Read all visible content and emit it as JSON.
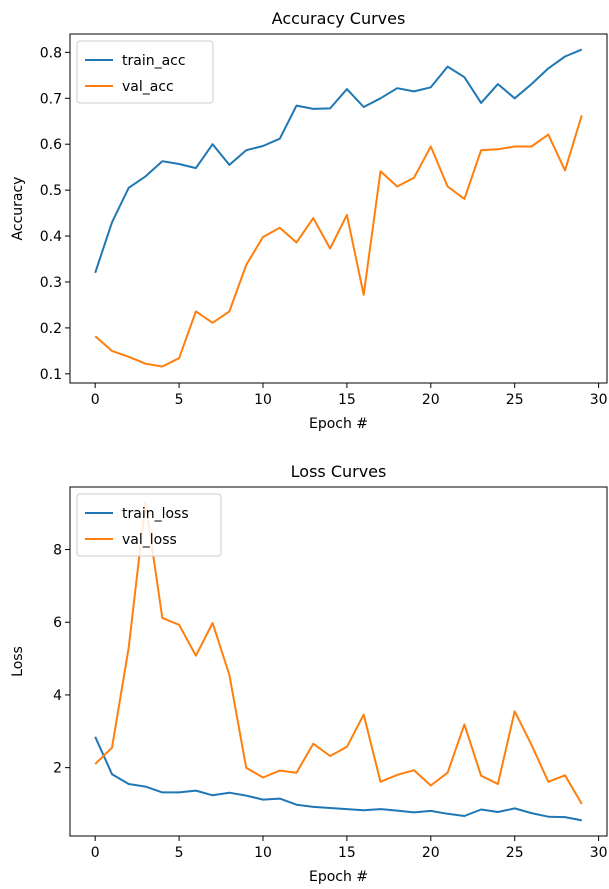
{
  "chart_data": [
    {
      "type": "line",
      "title": "Accuracy Curves",
      "xlabel": "Epoch #",
      "ylabel": "Accuracy",
      "xlim": [
        -1.5,
        30.5
      ],
      "ylim": [
        0.08,
        0.84
      ],
      "xticks": [
        0,
        5,
        10,
        15,
        20,
        25,
        30
      ],
      "yticks": [
        0.1,
        0.2,
        0.3,
        0.4,
        0.5,
        0.6,
        0.7,
        0.8
      ],
      "grid": false,
      "legend_position": "top-left",
      "x": [
        0,
        1,
        2,
        3,
        4,
        5,
        6,
        7,
        8,
        9,
        10,
        11,
        12,
        13,
        14,
        15,
        16,
        17,
        18,
        19,
        20,
        21,
        22,
        23,
        24,
        25,
        26,
        27,
        28,
        29
      ],
      "series": [
        {
          "name": "train_acc",
          "color": "#1f77b4",
          "values": [
            0.32,
            0.43,
            0.505,
            0.53,
            0.563,
            0.557,
            0.548,
            0.6,
            0.555,
            0.587,
            0.596,
            0.612,
            0.684,
            0.677,
            0.678,
            0.72,
            0.681,
            0.7,
            0.722,
            0.715,
            0.724,
            0.769,
            0.746,
            0.69,
            0.731,
            0.7,
            0.731,
            0.765,
            0.791,
            0.806
          ]
        },
        {
          "name": "val_acc",
          "color": "#ff7f0e",
          "values": [
            0.182,
            0.15,
            0.137,
            0.122,
            0.116,
            0.134,
            0.236,
            0.211,
            0.236,
            0.337,
            0.398,
            0.418,
            0.386,
            0.439,
            0.373,
            0.446,
            0.272,
            0.541,
            0.508,
            0.527,
            0.595,
            0.508,
            0.481,
            0.587,
            0.589,
            0.595,
            0.595,
            0.621,
            0.543,
            0.663
          ]
        }
      ]
    },
    {
      "type": "line",
      "title": "Loss Curves",
      "xlabel": "Epoch #",
      "ylabel": "Loss",
      "xlim": [
        -1.5,
        30.5
      ],
      "ylim": [
        0.12,
        9.72
      ],
      "xticks": [
        0,
        5,
        10,
        15,
        20,
        25,
        30
      ],
      "yticks": [
        2,
        4,
        6,
        8
      ],
      "grid": false,
      "legend_position": "top-left",
      "x": [
        0,
        1,
        2,
        3,
        4,
        5,
        6,
        7,
        8,
        9,
        10,
        11,
        12,
        13,
        14,
        15,
        16,
        17,
        18,
        19,
        20,
        21,
        22,
        23,
        24,
        25,
        26,
        27,
        28,
        29
      ],
      "series": [
        {
          "name": "train_loss",
          "color": "#1f77b4",
          "values": [
            2.85,
            1.82,
            1.55,
            1.48,
            1.32,
            1.32,
            1.37,
            1.24,
            1.31,
            1.23,
            1.12,
            1.15,
            0.98,
            0.92,
            0.89,
            0.86,
            0.83,
            0.86,
            0.82,
            0.77,
            0.81,
            0.73,
            0.67,
            0.85,
            0.78,
            0.88,
            0.75,
            0.65,
            0.64,
            0.55
          ]
        },
        {
          "name": "val_loss",
          "color": "#ff7f0e",
          "values": [
            2.1,
            2.55,
            5.3,
            9.3,
            6.12,
            5.93,
            5.08,
            5.98,
            4.55,
            2.0,
            1.73,
            1.92,
            1.86,
            2.66,
            2.32,
            2.57,
            3.46,
            1.61,
            1.8,
            1.93,
            1.51,
            1.86,
            3.19,
            1.78,
            1.55,
            3.55,
            2.63,
            1.61,
            1.79,
            1.0
          ]
        }
      ]
    }
  ]
}
